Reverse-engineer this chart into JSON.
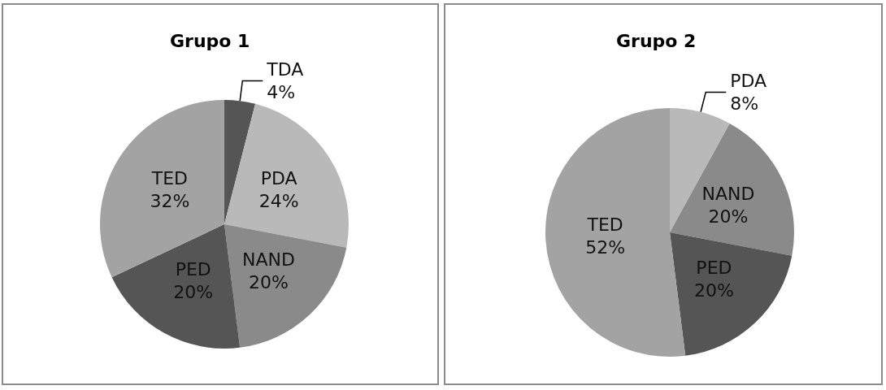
{
  "chart_data": [
    {
      "type": "pie",
      "title": "Grupo 1",
      "categories": [
        "TDA",
        "PDA",
        "NAND",
        "PED",
        "TED"
      ],
      "values": [
        4,
        24,
        20,
        20,
        32
      ],
      "value_labels": [
        "4%",
        "24%",
        "20%",
        "20%",
        "32%"
      ],
      "colors": [
        "#555555",
        "#b9b9b9",
        "#8a8a8a",
        "#555555",
        "#a3a3a3"
      ],
      "legend": false
    },
    {
      "type": "pie",
      "title": "Grupo 2",
      "categories": [
        "PDA",
        "NAND",
        "PED",
        "TED"
      ],
      "values": [
        8,
        20,
        20,
        52
      ],
      "value_labels": [
        "8%",
        "20%",
        "20%",
        "52%"
      ],
      "colors": [
        "#b9b9b9",
        "#8a8a8a",
        "#555555",
        "#a3a3a3"
      ],
      "legend": false
    }
  ]
}
